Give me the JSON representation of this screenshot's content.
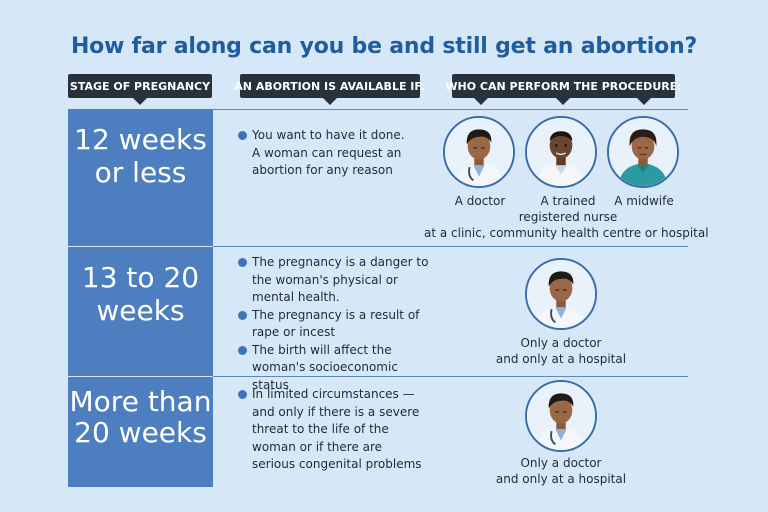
{
  "title": "How far along can you be and still get an abortion?",
  "headers": {
    "stage": "STAGE OF PREGNANCY",
    "available": "AN ABORTION IS AVAILABLE IF:",
    "who": "WHO CAN PERFORM THE PROCEDURE:"
  },
  "rows": [
    {
      "stage_line1": "12 weeks",
      "stage_line2": "or less",
      "conditions": [
        "You want to have it done. A woman can request an abortion for any reason"
      ],
      "providers": {
        "doctor": "A doctor",
        "nurse_line1": "A trained",
        "nurse_line2": "registered nurse",
        "midwife": "A midwife",
        "location": "at a clinic, community health centre or hospital"
      }
    },
    {
      "stage_line1": "13 to 20",
      "stage_line2": "weeks",
      "conditions": [
        "The pregnancy is a danger to the woman's physical or mental health.",
        "The pregnancy is a result of rape or incest",
        "The birth will affect the woman's socioeconomic status"
      ],
      "providers": {
        "line1": "Only a doctor",
        "line2": "and only at a hospital"
      }
    },
    {
      "stage_line1": "More than",
      "stage_line2": "20 weeks",
      "conditions": [
        "In limited circumstances — and only if there is a severe threat to the life of the woman or if there are serious congenital problems"
      ],
      "providers": {
        "line1": "Only a doctor",
        "line2": "and only at a hospital"
      }
    }
  ],
  "colors": {
    "background": "#d6e8f7",
    "title": "#1f5d9e",
    "header_bg": "#27323d",
    "stage_bg": "#4d7ebf",
    "bullet": "#3c74b5"
  },
  "icons": {
    "doctor": "doctor-portrait-icon",
    "nurse": "nurse-portrait-icon",
    "midwife": "midwife-portrait-icon"
  }
}
